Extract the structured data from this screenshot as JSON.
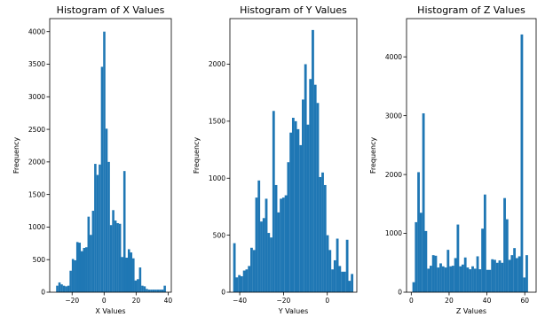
{
  "chart_data": [
    {
      "type": "bar",
      "title": "Histogram of X Values",
      "xlabel": "X Values",
      "ylabel": "Frequency",
      "xlim": [
        -34,
        42
      ],
      "ylim": [
        0,
        4200
      ],
      "xticks": [
        -20,
        0,
        20,
        40
      ],
      "yticks": [
        0,
        500,
        1000,
        1500,
        2000,
        2500,
        3000,
        3500,
        4000
      ],
      "bin_start": -30,
      "bin_width": 1.4,
      "color": "#1f77b4",
      "values": [
        100,
        150,
        120,
        100,
        90,
        100,
        330,
        510,
        490,
        770,
        760,
        630,
        680,
        690,
        1160,
        880,
        1250,
        1970,
        1800,
        1960,
        3460,
        4000,
        2510,
        2000,
        1030,
        1260,
        1100,
        1060,
        1050,
        540,
        1860,
        530,
        660,
        610,
        520,
        180,
        200,
        380,
        100,
        90,
        50,
        40,
        40,
        40,
        40,
        40,
        40,
        40,
        100
      ]
    },
    {
      "type": "bar",
      "title": "Histogram of Y Values",
      "xlabel": "Y Values",
      "ylabel": "Frequency",
      "xlim": [
        -44.5,
        13.5
      ],
      "ylim": [
        0,
        2400
      ],
      "xticks": [
        -40,
        -20,
        0
      ],
      "yticks": [
        0,
        500,
        1000,
        1500,
        2000
      ],
      "bin_start": -43,
      "bin_width": 1.12,
      "color": "#1f77b4",
      "values": [
        430,
        130,
        150,
        140,
        190,
        200,
        230,
        390,
        370,
        830,
        980,
        620,
        650,
        820,
        520,
        480,
        1590,
        940,
        700,
        820,
        830,
        850,
        1140,
        1400,
        1530,
        1500,
        1430,
        1290,
        1690,
        2000,
        1470,
        1870,
        2300,
        1820,
        1660,
        1010,
        1050,
        940,
        500,
        370,
        200,
        280,
        470,
        230,
        180,
        180,
        460,
        100,
        160
      ]
    },
    {
      "type": "bar",
      "title": "Histogram of Z Values",
      "xlabel": "Z Values",
      "ylabel": "Frequency",
      "xlim": [
        -2.5,
        66
      ],
      "ylim": [
        0,
        4650
      ],
      "xticks": [
        0,
        20,
        40,
        60
      ],
      "yticks": [
        0,
        1000,
        2000,
        3000,
        4000
      ],
      "bin_start": 0.6,
      "bin_width": 1.3,
      "color": "#1f77b4",
      "values": [
        170,
        1190,
        2040,
        1350,
        3040,
        1040,
        400,
        450,
        630,
        620,
        420,
        490,
        440,
        420,
        720,
        440,
        450,
        580,
        1150,
        440,
        470,
        590,
        420,
        390,
        440,
        400,
        610,
        390,
        1080,
        1660,
        380,
        380,
        560,
        550,
        500,
        540,
        500,
        1600,
        1240,
        550,
        630,
        750,
        580,
        610,
        4380,
        250,
        630
      ]
    }
  ]
}
